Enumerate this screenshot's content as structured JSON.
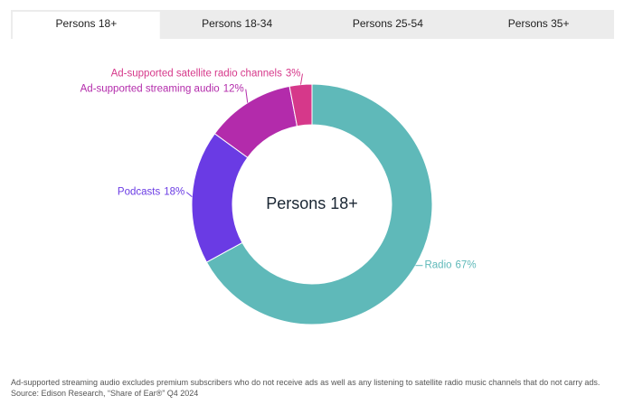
{
  "tabs": [
    "Persons 18+",
    "Persons 18-34",
    "Persons 25-54",
    "Persons 35+"
  ],
  "active_tab": 0,
  "chart_data": {
    "type": "pie",
    "center_label": "Persons 18+",
    "categories": [
      "Radio",
      "Podcasts",
      "Ad-supported streaming audio",
      "Ad-supported satellite radio channels"
    ],
    "values": [
      67,
      18,
      12,
      3
    ],
    "value_labels": [
      "67%",
      "18%",
      "12%",
      "3%"
    ],
    "colors": [
      "#5fb9b9",
      "#6a3be4",
      "#b32bab",
      "#d6388a"
    ]
  },
  "notes": [
    "Ad-supported streaming audio excludes premium subscribers who do not receive ads as well as any listening to satellite radio music channels that do not carry ads.",
    "Source: Edison Research, “Share of Ear®” Q4 2024"
  ]
}
